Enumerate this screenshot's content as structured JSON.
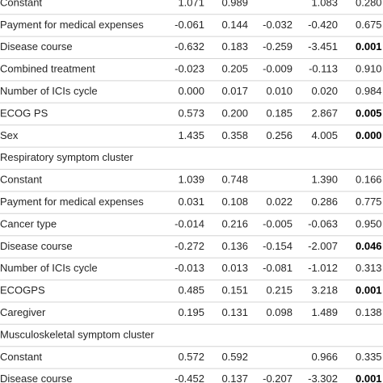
{
  "table": {
    "rows": [
      {
        "cells": [
          "Constant",
          "1.071",
          "0.989",
          null,
          "1.083",
          "0.280"
        ]
      },
      {
        "cells": [
          "Payment for medical expenses",
          "-0.061",
          "0.144",
          "-0.032",
          "-0.420",
          "0.675"
        ]
      },
      {
        "cells": [
          "Disease course",
          "-0.632",
          "0.183",
          "-0.259",
          "-3.451",
          "0.001"
        ],
        "emphasis": true
      },
      {
        "cells": [
          "Combined treatment",
          "-0.023",
          "0.205",
          "-0.009",
          "-0.113",
          "0.910"
        ]
      },
      {
        "cells": [
          "Number of ICIs cycle",
          "0.000",
          "0.017",
          "0.010",
          "0.020",
          "0.984"
        ]
      },
      {
        "cells": [
          "ECOG PS",
          "0.573",
          "0.200",
          "0.185",
          "2.867",
          "0.005"
        ],
        "emphasis": true
      },
      {
        "cells": [
          "Sex",
          "1.435",
          "0.358",
          "0.256",
          "4.005",
          "0.000"
        ],
        "emphasis": true
      },
      {
        "section": "Respiratory symptom cluster"
      },
      {
        "cells": [
          "Constant",
          "1.039",
          "0.748",
          null,
          "1.390",
          "0.166"
        ]
      },
      {
        "cells": [
          "Payment for medical expenses",
          "0.031",
          "0.108",
          "0.022",
          "0.286",
          "0.775"
        ]
      },
      {
        "cells": [
          "Cancer type",
          "-0.014",
          "0.216",
          "-0.005",
          "-0.063",
          "0.950"
        ]
      },
      {
        "cells": [
          "Disease course",
          "-0.272",
          "0.136",
          "-0.154",
          "-2.007",
          "0.046"
        ],
        "emphasis": true
      },
      {
        "cells": [
          "Number of ICIs cycle",
          "-0.013",
          "0.013",
          "-0.081",
          "-1.012",
          "0.313"
        ]
      },
      {
        "cells": [
          "ECOGPS",
          "0.485",
          "0.151",
          "0.215",
          "3.218",
          "0.001"
        ],
        "emphasis": true
      },
      {
        "cells": [
          "Caregiver",
          "0.195",
          "0.131",
          "0.098",
          "1.489",
          "0.138"
        ]
      },
      {
        "section": "Musculoskeletal symptom cluster"
      },
      {
        "cells": [
          "Constant",
          "0.572",
          "0.592",
          null,
          "0.966",
          "0.335"
        ]
      },
      {
        "cells": [
          "Disease course",
          "-0.452",
          "0.137",
          "-0.207",
          "-3.302",
          "0.001"
        ],
        "emphasis": true
      }
    ]
  }
}
